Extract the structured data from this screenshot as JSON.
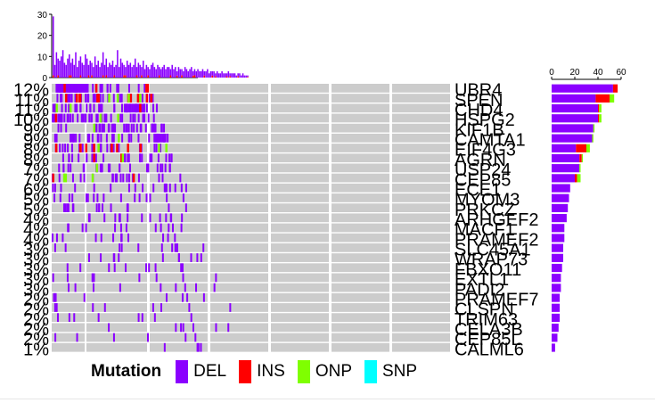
{
  "chart_data": {
    "type": "heatmap",
    "title": "",
    "genes": [
      "UBR4",
      "SPEN",
      "CHD4",
      "HSPG2",
      "KIF1B",
      "CAMTA1",
      "EIF4G3",
      "AGRN",
      "USP24",
      "CEP85",
      "ECE1",
      "MYOM3",
      "PRKCZ",
      "ARHGEF2",
      "MACF1",
      "PRAMEF2",
      "SLC45A1",
      "WRAP73",
      "FBXO11",
      "EXTL1",
      "PADI2",
      "PRAMEF7",
      "CLSPN",
      "TRIM63",
      "CELA3B",
      "CEP85L",
      "CALML6"
    ],
    "row_labels": [
      "12%",
      "11%",
      "11%",
      "10%",
      "9%",
      "9%",
      "8%",
      "8%",
      "7%",
      "7%",
      "6%",
      "5%",
      "5%",
      "4%",
      "4%",
      "4%",
      "3%",
      "3%",
      "3%",
      "3%",
      "3%",
      "2%",
      "2%",
      "2%",
      "2%",
      "2%",
      "1%"
    ],
    "gene_counts": {
      "DEL": [
        53,
        38,
        40,
        40,
        36,
        35,
        21,
        24,
        24,
        20,
        16,
        15,
        14,
        13,
        11,
        11,
        10,
        10,
        9,
        8,
        8,
        7,
        7,
        7,
        6,
        5,
        3
      ],
      "INS": [
        4,
        12,
        1,
        1,
        0,
        0,
        9,
        2,
        0,
        2,
        0,
        0,
        0,
        0,
        0,
        0,
        0,
        0,
        0,
        0,
        0,
        0,
        0,
        0,
        0,
        0,
        0
      ],
      "ONP": [
        0,
        4,
        2,
        2,
        1,
        1,
        3,
        1,
        1,
        3,
        0,
        0,
        0,
        0,
        0,
        0,
        0,
        0,
        0,
        0,
        0,
        0,
        0,
        0,
        0,
        0,
        0
      ],
      "SNP": [
        0,
        0,
        0,
        0,
        0,
        0,
        0,
        0,
        0,
        0,
        0,
        0,
        0,
        0,
        0,
        0,
        0,
        0,
        0,
        0,
        0,
        0,
        0,
        0,
        0,
        0,
        0
      ]
    },
    "gene_bar_axis": {
      "range": [
        0,
        60
      ],
      "ticks": [
        "0",
        "20",
        "40",
        "60"
      ]
    },
    "tmb_axis": {
      "range": [
        0,
        30
      ],
      "ticks": [
        "0",
        "10",
        "20",
        "30"
      ]
    },
    "tmb_values": [
      29,
      6,
      12,
      9,
      8,
      10,
      13,
      7,
      6,
      9,
      11,
      7,
      9,
      6,
      12,
      5,
      8,
      10,
      7,
      6,
      11,
      9,
      6,
      8,
      7,
      5,
      10,
      6,
      8,
      5,
      7,
      12,
      6,
      9,
      5,
      7,
      6,
      8,
      5,
      6,
      13,
      5,
      9,
      7,
      6,
      5,
      8,
      6,
      7,
      5,
      6,
      9,
      5,
      7,
      6,
      5,
      8,
      4,
      6,
      5,
      4,
      6,
      7,
      5,
      4,
      6,
      5,
      4,
      5,
      6,
      4,
      5,
      5,
      4,
      6,
      4,
      5,
      3,
      5,
      4,
      4,
      3,
      5,
      4,
      3,
      4,
      5,
      3,
      4,
      3,
      4,
      3,
      3,
      4,
      3,
      3,
      4,
      2,
      3,
      3,
      3,
      2,
      3,
      2,
      2,
      3,
      2,
      2,
      2,
      3,
      2,
      2,
      2,
      2,
      1,
      2,
      2,
      1,
      2,
      1,
      1,
      1
    ],
    "legend": {
      "title": "Mutation",
      "items": [
        {
          "label": "DEL",
          "color": "#8b00ff"
        },
        {
          "label": "INS",
          "color": "#ff0000"
        },
        {
          "label": "ONP",
          "color": "#7fff00"
        },
        {
          "label": "SNP",
          "color": "#00ffff"
        }
      ]
    },
    "background_color": "#cccccc"
  }
}
